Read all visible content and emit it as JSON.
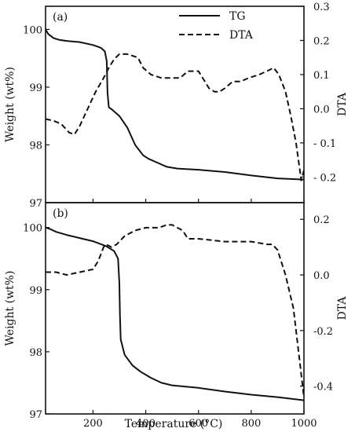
{
  "chart_data": [
    {
      "type": "line",
      "panel_label": "(a)",
      "xlabel": "Temperature (°C)",
      "ylabel_left": "Weight (wt%)",
      "ylabel_right": "DTA",
      "xlim": [
        20,
        1000
      ],
      "ylim_left": [
        97,
        100.4
      ],
      "ylim_right": [
        -0.275,
        0.3
      ],
      "xticks": [
        200,
        400,
        600,
        800,
        1000
      ],
      "yticks_left": [
        97,
        98,
        99,
        100
      ],
      "yticks_right": [
        {
          "value": 0.3,
          "label": "0.3"
        },
        {
          "value": 0.2,
          "label": "0.2"
        },
        {
          "value": 0.1,
          "label": "0.1"
        },
        {
          "value": 0.0,
          "label": "0.0"
        },
        {
          "value": -0.1,
          "label": "- 0.1"
        },
        {
          "value": -0.2,
          "label": "- 0.2"
        }
      ],
      "legend": {
        "position": "top-right",
        "entries": [
          {
            "label": "TG",
            "style": "solid"
          },
          {
            "label": "DTA",
            "style": "dashed"
          }
        ]
      },
      "series": [
        {
          "name": "TG",
          "axis": "left",
          "style": "solid",
          "x": [
            20,
            30,
            50,
            70,
            100,
            150,
            200,
            230,
            245,
            252,
            255,
            260,
            270,
            300,
            330,
            360,
            390,
            410,
            440,
            480,
            520,
            600,
            700,
            800,
            900,
            1000
          ],
          "y": [
            100.0,
            99.92,
            99.85,
            99.82,
            99.8,
            99.78,
            99.73,
            99.68,
            99.62,
            99.45,
            98.9,
            98.65,
            98.62,
            98.5,
            98.3,
            98.0,
            97.82,
            97.76,
            97.7,
            97.62,
            97.59,
            97.57,
            97.53,
            97.47,
            97.42,
            97.4
          ]
        },
        {
          "name": "DTA",
          "axis": "right",
          "style": "dashed",
          "x": [
            20,
            50,
            80,
            110,
            130,
            150,
            180,
            210,
            240,
            260,
            280,
            300,
            330,
            370,
            390,
            420,
            460,
            500,
            530,
            560,
            600,
            640,
            660,
            680,
            700,
            730,
            760,
            790,
            830,
            860,
            885,
            895,
            905,
            930,
            950,
            970,
            990,
            1000
          ],
          "y": [
            -0.03,
            -0.035,
            -0.045,
            -0.07,
            -0.075,
            -0.05,
            0.0,
            0.05,
            0.09,
            0.12,
            0.145,
            0.16,
            0.16,
            0.15,
            0.12,
            0.1,
            0.09,
            0.09,
            0.09,
            0.11,
            0.11,
            0.06,
            0.05,
            0.05,
            0.06,
            0.08,
            0.08,
            0.09,
            0.1,
            0.11,
            0.12,
            0.11,
            0.1,
            0.05,
            -0.02,
            -0.1,
            -0.21,
            -0.18
          ]
        }
      ]
    },
    {
      "type": "line",
      "panel_label": "(b)",
      "xlabel": "Temperature (°C)",
      "ylabel_left": "Weight (wt%)",
      "ylabel_right": "DTA",
      "xlim": [
        20,
        1000
      ],
      "ylim_left": [
        97,
        100.4
      ],
      "ylim_right": [
        -0.5,
        0.26
      ],
      "xticks": [
        200,
        400,
        600,
        800,
        1000
      ],
      "yticks_left": [
        97,
        98,
        99,
        100
      ],
      "yticks_right": [
        {
          "value": 0.2,
          "label": "0.2"
        },
        {
          "value": 0.0,
          "label": "0.0"
        },
        {
          "value": -0.2,
          "label": "-0.2"
        },
        {
          "value": -0.4,
          "label": "-0.4"
        }
      ],
      "series": [
        {
          "name": "TG",
          "axis": "left",
          "style": "solid",
          "x": [
            20,
            40,
            60,
            100,
            150,
            200,
            250,
            280,
            295,
            300,
            302,
            305,
            320,
            350,
            380,
            420,
            460,
            500,
            600,
            700,
            800,
            900,
            1000
          ],
          "y": [
            100.0,
            99.97,
            99.93,
            99.88,
            99.83,
            99.78,
            99.7,
            99.62,
            99.5,
            99.1,
            98.6,
            98.2,
            97.95,
            97.78,
            97.68,
            97.58,
            97.5,
            97.46,
            97.42,
            97.36,
            97.31,
            97.27,
            97.22
          ]
        },
        {
          "name": "DTA",
          "axis": "right",
          "style": "dashed",
          "x": [
            20,
            60,
            100,
            150,
            200,
            220,
            240,
            250,
            270,
            290,
            320,
            360,
            400,
            450,
            480,
            500,
            520,
            540,
            560,
            600,
            700,
            800,
            860,
            880,
            900,
            930,
            960,
            980,
            1000
          ],
          "y": [
            0.01,
            0.01,
            0.0,
            0.01,
            0.02,
            0.05,
            0.1,
            0.11,
            0.1,
            0.11,
            0.14,
            0.16,
            0.17,
            0.17,
            0.18,
            0.18,
            0.17,
            0.16,
            0.13,
            0.13,
            0.12,
            0.12,
            0.11,
            0.11,
            0.09,
            0.0,
            -0.12,
            -0.28,
            -0.44
          ]
        }
      ]
    }
  ]
}
